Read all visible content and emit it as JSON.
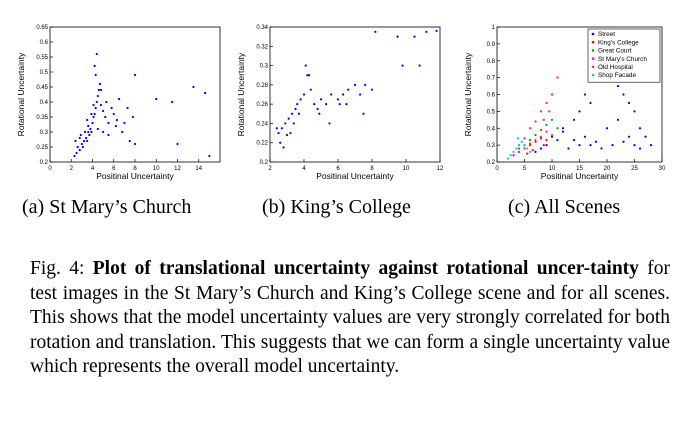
{
  "figure_caption": {
    "prefix": "Fig. 4: ",
    "title": "Plot of translational uncertainty against rotational uncer-tainty",
    "body": " for test images in the St Mary’s Church and King’s College scene and for all scenes. This shows that the model uncertainty values are very strongly correlated for both rotation and translation. This suggests that we can form a single uncertainty value which represents the overall model uncertainty."
  },
  "subcaptions": {
    "a": "(a) St Mary’s Church",
    "b": "(b) King’s College",
    "c": "(c) All Scenes"
  },
  "chart_data": [
    {
      "type": "scatter",
      "xlabel": "Positinal Uncertainty",
      "ylabel": "Rotational Uncertainty",
      "xlim": [
        0,
        16
      ],
      "ylim": [
        0.2,
        0.65
      ],
      "xticks": [
        0,
        2,
        4,
        6,
        8,
        10,
        12,
        14
      ],
      "yticks": [
        0.2,
        0.25,
        0.3,
        0.35,
        0.4,
        0.45,
        0.5,
        0.55,
        0.6,
        0.65
      ],
      "marker_color": "#0000ff",
      "series": [
        {
          "color": "#0000ff",
          "points": [
            [
              2.3,
              0.22
            ],
            [
              2.5,
              0.23
            ],
            [
              2.6,
              0.25
            ],
            [
              2.8,
              0.24
            ],
            [
              3.0,
              0.26
            ],
            [
              3.1,
              0.25
            ],
            [
              3.2,
              0.27
            ],
            [
              3.4,
              0.28
            ],
            [
              3.5,
              0.27
            ],
            [
              3.6,
              0.3
            ],
            [
              3.7,
              0.29
            ],
            [
              3.8,
              0.31
            ],
            [
              3.9,
              0.3
            ],
            [
              4.0,
              0.33
            ],
            [
              4.1,
              0.35
            ],
            [
              4.2,
              0.36
            ],
            [
              4.3,
              0.38
            ],
            [
              4.4,
              0.4
            ],
            [
              4.5,
              0.42
            ],
            [
              4.6,
              0.44
            ],
            [
              4.7,
              0.46
            ],
            [
              4.2,
              0.52
            ],
            [
              4.4,
              0.56
            ],
            [
              4.3,
              0.49
            ],
            [
              4.8,
              0.39
            ],
            [
              5.0,
              0.37
            ],
            [
              5.2,
              0.35
            ],
            [
              5.5,
              0.33
            ],
            [
              5.8,
              0.38
            ],
            [
              6.0,
              0.36
            ],
            [
              6.3,
              0.34
            ],
            [
              6.5,
              0.41
            ],
            [
              7.0,
              0.33
            ],
            [
              7.3,
              0.38
            ],
            [
              7.8,
              0.35
            ],
            [
              8.0,
              0.49
            ],
            [
              10.0,
              0.41
            ],
            [
              11.5,
              0.4
            ],
            [
              13.5,
              0.45
            ],
            [
              14.6,
              0.43
            ],
            [
              2.8,
              0.28
            ],
            [
              3.3,
              0.3
            ],
            [
              3.6,
              0.32
            ],
            [
              4.5,
              0.31
            ],
            [
              5.0,
              0.3
            ],
            [
              5.5,
              0.29
            ],
            [
              6.2,
              0.32
            ],
            [
              6.8,
              0.3
            ],
            [
              7.5,
              0.27
            ],
            [
              8.0,
              0.26
            ],
            [
              12.0,
              0.26
            ],
            [
              15.0,
              0.22
            ],
            [
              2.4,
              0.27
            ],
            [
              2.9,
              0.29
            ],
            [
              3.5,
              0.34
            ],
            [
              4.8,
              0.44
            ],
            [
              5.3,
              0.4
            ],
            [
              4.1,
              0.39
            ],
            [
              3.9,
              0.36
            ]
          ]
        }
      ]
    },
    {
      "type": "scatter",
      "xlabel": "Positinal Uncertainty",
      "ylabel": "Rotational Uncertainty",
      "xlim": [
        2,
        12
      ],
      "ylim": [
        0.2,
        0.34
      ],
      "xticks": [
        2,
        4,
        6,
        8,
        10,
        12
      ],
      "yticks": [
        0.2,
        0.22,
        0.24,
        0.26,
        0.28,
        0.3,
        0.32,
        0.34
      ],
      "marker_color": "#0000ff",
      "series": [
        {
          "color": "#0000ff",
          "points": [
            [
              2.5,
              0.23
            ],
            [
              2.7,
              0.235
            ],
            [
              2.9,
              0.24
            ],
            [
              3.0,
              0.228
            ],
            [
              3.1,
              0.245
            ],
            [
              3.3,
              0.25
            ],
            [
              3.5,
              0.255
            ],
            [
              3.6,
              0.26
            ],
            [
              3.8,
              0.265
            ],
            [
              4.0,
              0.27
            ],
            [
              4.1,
              0.3
            ],
            [
              4.2,
              0.29
            ],
            [
              4.4,
              0.275
            ],
            [
              4.6,
              0.26
            ],
            [
              4.8,
              0.255
            ],
            [
              5.0,
              0.265
            ],
            [
              5.3,
              0.26
            ],
            [
              5.6,
              0.27
            ],
            [
              6.0,
              0.265
            ],
            [
              6.3,
              0.27
            ],
            [
              6.6,
              0.275
            ],
            [
              7.0,
              0.28
            ],
            [
              7.3,
              0.27
            ],
            [
              7.6,
              0.28
            ],
            [
              8.0,
              0.275
            ],
            [
              8.2,
              0.335
            ],
            [
              9.5,
              0.33
            ],
            [
              10.5,
              0.33
            ],
            [
              11.2,
              0.335
            ],
            [
              11.8,
              0.336
            ],
            [
              10.8,
              0.3
            ],
            [
              9.8,
              0.3
            ],
            [
              3.2,
              0.23
            ],
            [
              2.6,
              0.22
            ],
            [
              2.8,
              0.215
            ],
            [
              3.4,
              0.24
            ],
            [
              4.3,
              0.29
            ],
            [
              4.9,
              0.25
            ],
            [
              5.5,
              0.24
            ],
            [
              6.5,
              0.26
            ],
            [
              7.5,
              0.25
            ],
            [
              6.1,
              0.26
            ],
            [
              3.7,
              0.25
            ],
            [
              2.4,
              0.235
            ]
          ]
        }
      ]
    },
    {
      "type": "scatter",
      "xlabel": "Positinal Uncertainty",
      "ylabel": "Rotational Uncertainty",
      "xlim": [
        0,
        30
      ],
      "ylim": [
        0.2,
        1.0
      ],
      "xticks": [
        0,
        5,
        10,
        15,
        20,
        25,
        30
      ],
      "yticks": [
        0.2,
        0.3,
        0.4,
        0.5,
        0.6,
        0.7,
        0.8,
        0.9,
        1.0
      ],
      "legend_position": "top-right",
      "series": [
        {
          "name": "Street",
          "color": "#0000ff",
          "points": [
            [
              10,
              0.35
            ],
            [
              12,
              0.4
            ],
            [
              14,
              0.45
            ],
            [
              15,
              0.5
            ],
            [
              16,
              0.6
            ],
            [
              17,
              0.55
            ],
            [
              18,
              0.7
            ],
            [
              19,
              0.8
            ],
            [
              20,
              0.85
            ],
            [
              21,
              0.9
            ],
            [
              22,
              0.65
            ],
            [
              23,
              0.6
            ],
            [
              24,
              0.55
            ],
            [
              25,
              0.5
            ],
            [
              26,
              0.4
            ],
            [
              27,
              0.35
            ],
            [
              28,
              0.3
            ],
            [
              16,
              0.35
            ],
            [
              18,
              0.32
            ],
            [
              20,
              0.4
            ],
            [
              22,
              0.45
            ],
            [
              24,
              0.35
            ],
            [
              13,
              0.28
            ],
            [
              15,
              0.3
            ],
            [
              17,
              0.3
            ],
            [
              19,
              0.28
            ],
            [
              21,
              0.3
            ],
            [
              23,
              0.32
            ],
            [
              11,
              0.33
            ],
            [
              12,
              0.38
            ],
            [
              14,
              0.33
            ],
            [
              9,
              0.3
            ],
            [
              8,
              0.28
            ],
            [
              7,
              0.26
            ],
            [
              25,
              0.3
            ],
            [
              26,
              0.28
            ]
          ]
        },
        {
          "name": "King’s College",
          "color": "#ff0000",
          "points": [
            [
              3,
              0.24
            ],
            [
              4,
              0.26
            ],
            [
              5,
              0.28
            ],
            [
              6,
              0.3
            ],
            [
              7,
              0.32
            ],
            [
              8,
              0.34
            ],
            [
              5.5,
              0.25
            ],
            [
              6.5,
              0.27
            ],
            [
              8.5,
              0.3
            ],
            [
              9,
              0.33
            ]
          ]
        },
        {
          "name": "Great Court",
          "color": "#00aa00",
          "points": [
            [
              4,
              0.28
            ],
            [
              5,
              0.3
            ],
            [
              6,
              0.33
            ],
            [
              7,
              0.36
            ],
            [
              8,
              0.39
            ],
            [
              9,
              0.42
            ],
            [
              10,
              0.45
            ],
            [
              11,
              0.4
            ]
          ]
        },
        {
          "name": "St Mary’s Church",
          "color": "#ff00ff",
          "points": [
            [
              3,
              0.24
            ],
            [
              4,
              0.3
            ],
            [
              5,
              0.34
            ],
            [
              6,
              0.4
            ],
            [
              7,
              0.44
            ],
            [
              8,
              0.5
            ],
            [
              9,
              0.55
            ],
            [
              10,
              0.6
            ],
            [
              11,
              0.7
            ],
            [
              9.5,
              0.5
            ],
            [
              8.5,
              0.45
            ]
          ]
        },
        {
          "name": "Old Hospital",
          "color": "#ff2a7f",
          "points": [
            [
              4,
              0.26
            ],
            [
              5,
              0.28
            ],
            [
              6,
              0.31
            ],
            [
              7,
              0.33
            ],
            [
              8,
              0.35
            ],
            [
              9,
              0.38
            ],
            [
              10,
              0.36
            ]
          ]
        },
        {
          "name": "Shop Facade",
          "color": "#00cccc",
          "points": [
            [
              2,
              0.22
            ],
            [
              2.5,
              0.24
            ],
            [
              3,
              0.26
            ],
            [
              3.5,
              0.28
            ],
            [
              4,
              0.3
            ],
            [
              4.5,
              0.32
            ],
            [
              5,
              0.3
            ],
            [
              5.5,
              0.28
            ],
            [
              6,
              0.26
            ],
            [
              3.8,
              0.34
            ]
          ]
        }
      ]
    }
  ]
}
